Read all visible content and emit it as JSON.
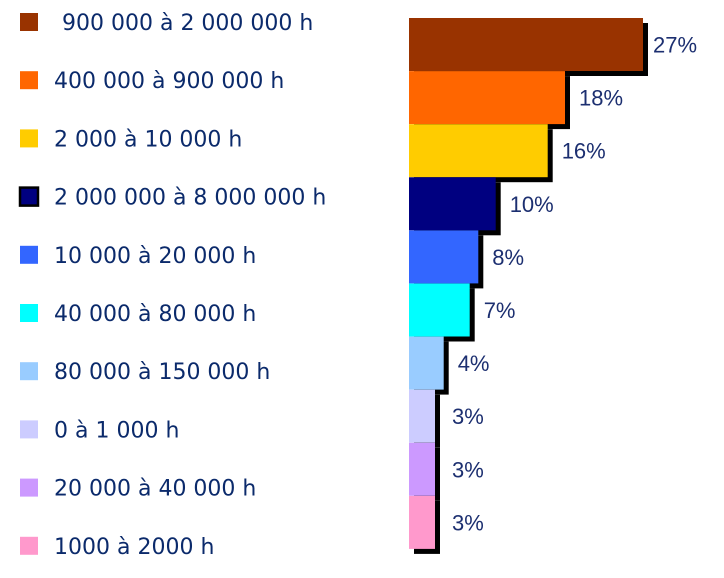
{
  "chart_data": {
    "type": "bar",
    "orientation": "horizontal",
    "series": [
      {
        "label": "900 000 à 2 000 000 h",
        "value": 27,
        "color": "#993300",
        "data_label": "27%"
      },
      {
        "label": "400 000 à 900 000 h",
        "value": 18,
        "color": "#ff6600",
        "data_label": "18%"
      },
      {
        "label": "2 000 à 10 000 h",
        "value": 16,
        "color": "#ffcc00",
        "data_label": "16%"
      },
      {
        "label": "2 000 000 à  8 000 000 h",
        "value": 10,
        "color": "#000080",
        "data_label": "10%"
      },
      {
        "label": "10 000 à 20 000 h",
        "value": 8,
        "color": "#3366ff",
        "data_label": "8%"
      },
      {
        "label": "40 000 à 80 000 h",
        "value": 7,
        "color": "#00ffff",
        "data_label": "7%"
      },
      {
        "label": "80 000 à 150 000 h",
        "value": 4,
        "color": "#99ccff",
        "data_label": "4%"
      },
      {
        "label": "0 à 1 000 h",
        "value": 3,
        "color": "#ccccff",
        "data_label": "3%"
      },
      {
        "label": "20 000 à 40 000 h",
        "value": 3,
        "color": "#cc99ff",
        "data_label": "3%"
      },
      {
        "label": "1000 à 2000 h",
        "value": 3,
        "color": "#ff99cc",
        "data_label": "3%"
      }
    ],
    "value_unit": "%",
    "legend_position": "left",
    "shadow_color": "#000000",
    "label_color": "#0b2a6b"
  }
}
